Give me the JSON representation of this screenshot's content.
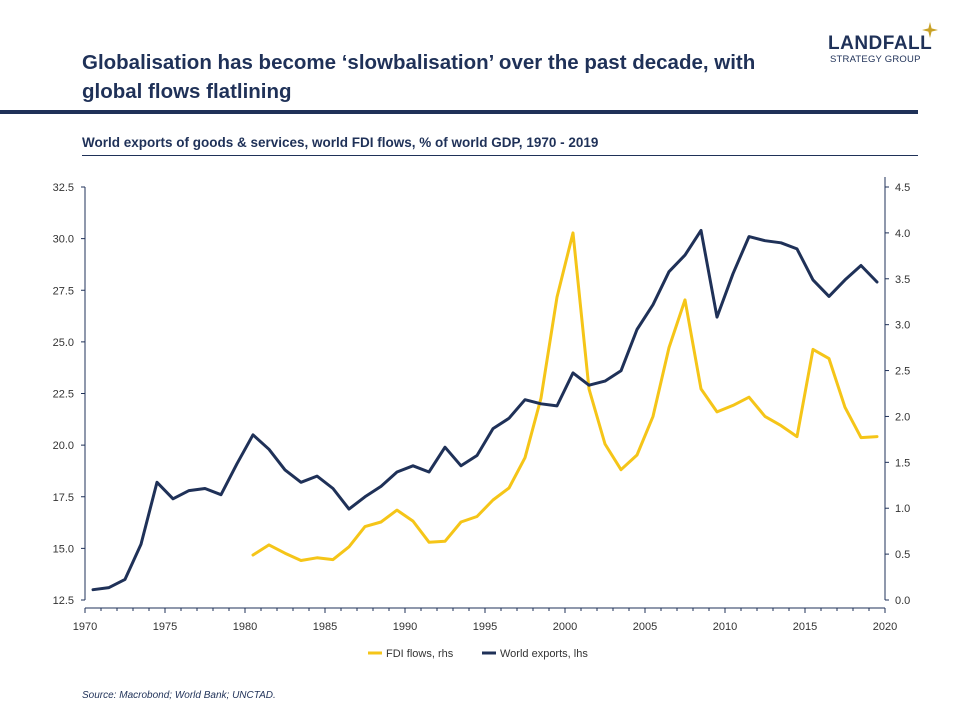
{
  "header": {
    "title": "Globalisation has become ‘slowbalisation’ over the past decade, with global flows flatlining",
    "subtitle": "World exports of goods & services, world FDI flows, % of world GDP, 1970 - 2019",
    "logo_main": "LANDFALL",
    "logo_sub": "STRATEGY GROUP",
    "source": "Source: Macrobond;  World Bank; UNCTAD."
  },
  "colors": {
    "navy": "#1f3158",
    "gold": "#f5c518"
  },
  "chart_data": {
    "type": "line",
    "xlim": [
      1970,
      2020
    ],
    "x_ticks": [
      "1970",
      "1975",
      "1980",
      "1985",
      "1990",
      "1995",
      "2000",
      "2005",
      "2010",
      "2015",
      "2020"
    ],
    "y_left": {
      "lim": [
        12.5,
        32.5
      ],
      "ticks": [
        "12.5",
        "15.0",
        "17.5",
        "20.0",
        "22.5",
        "25.0",
        "27.5",
        "30.0",
        "32.5"
      ]
    },
    "y_right": {
      "lim": [
        0.0,
        4.5
      ],
      "ticks": [
        "0.0",
        "0.5",
        "1.0",
        "1.5",
        "2.0",
        "2.5",
        "3.0",
        "3.5",
        "4.0",
        "4.5"
      ]
    },
    "series": [
      {
        "name": "FDI flows, rhs",
        "axis": "right",
        "color": "#f5c518",
        "x": [
          1980,
          1981,
          1982,
          1983,
          1984,
          1985,
          1986,
          1987,
          1988,
          1989,
          1990,
          1991,
          1992,
          1993,
          1994,
          1995,
          1996,
          1997,
          1998,
          1999,
          2000,
          2001,
          2002,
          2003,
          2004,
          2005,
          2006,
          2007,
          2008,
          2009,
          2010,
          2011,
          2012,
          2013,
          2014,
          2015,
          2016,
          2017,
          2018,
          2019
        ],
        "values": [
          0.49,
          0.6,
          0.51,
          0.43,
          0.46,
          0.44,
          0.58,
          0.8,
          0.85,
          0.98,
          0.86,
          0.63,
          0.64,
          0.85,
          0.91,
          1.09,
          1.22,
          1.55,
          2.2,
          3.3,
          4.0,
          2.3,
          1.7,
          1.42,
          1.58,
          2.0,
          2.75,
          3.27,
          2.3,
          2.05,
          2.12,
          2.21,
          2.0,
          1.9,
          1.78,
          2.73,
          2.63,
          2.1,
          1.77,
          1.78
        ]
      },
      {
        "name": "World exports, lhs",
        "axis": "left",
        "color": "#1f3158",
        "x": [
          1970,
          1971,
          1972,
          1973,
          1974,
          1975,
          1976,
          1977,
          1978,
          1979,
          1980,
          1981,
          1982,
          1983,
          1984,
          1985,
          1986,
          1987,
          1988,
          1989,
          1990,
          1991,
          1992,
          1993,
          1994,
          1995,
          1996,
          1997,
          1998,
          1999,
          2000,
          2001,
          2002,
          2003,
          2004,
          2005,
          2006,
          2007,
          2008,
          2009,
          2010,
          2011,
          2012,
          2013,
          2014,
          2015,
          2016,
          2017,
          2018,
          2019
        ],
        "values": [
          13.0,
          13.1,
          13.5,
          15.2,
          18.2,
          17.4,
          17.8,
          17.9,
          17.6,
          19.1,
          20.5,
          19.8,
          18.8,
          18.2,
          18.5,
          17.9,
          16.9,
          17.5,
          18.0,
          18.7,
          19.0,
          18.7,
          19.9,
          19.0,
          19.5,
          20.8,
          21.3,
          22.2,
          22.0,
          21.9,
          23.5,
          22.9,
          23.1,
          23.6,
          25.6,
          26.8,
          28.4,
          29.2,
          30.4,
          26.2,
          28.3,
          30.1,
          29.9,
          29.8,
          29.5,
          28.0,
          27.2,
          28.0,
          28.7,
          27.9
        ]
      }
    ]
  }
}
